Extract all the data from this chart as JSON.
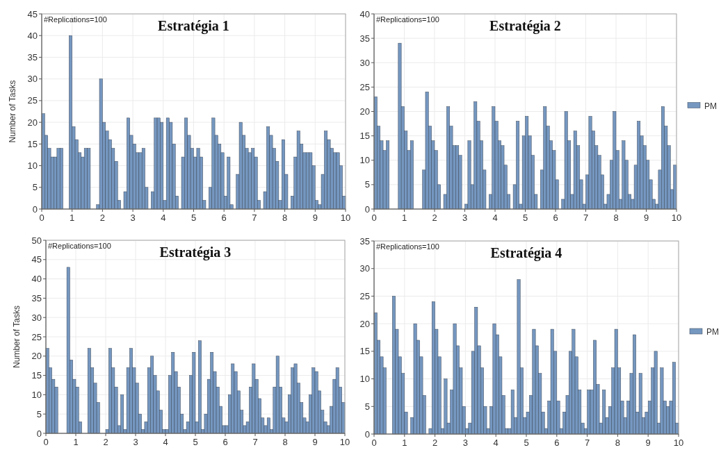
{
  "chart_data": [
    {
      "type": "histogram",
      "title": "Estratégia 1",
      "ylabel": "Number of Tasks",
      "annotations": [
        "#Replications=100"
      ],
      "xlim": [
        0,
        10
      ],
      "xticks": [
        0,
        1,
        2,
        3,
        4,
        5,
        6,
        7,
        8,
        9,
        10
      ],
      "ylim": [
        0,
        45
      ],
      "yticks": [
        0,
        5,
        10,
        15,
        20,
        25,
        30,
        35,
        40,
        45
      ],
      "grid": true,
      "legend": false,
      "bins": [
        0,
        0.1,
        0.2,
        0.3,
        0.4,
        0.5,
        0.6,
        0.7,
        0.8,
        0.9,
        1,
        1.1,
        1.2,
        1.3,
        1.4,
        1.5,
        1.6,
        1.7,
        1.8,
        1.9,
        2,
        2.1,
        2.2,
        2.3,
        2.4,
        2.5,
        2.6,
        2.7,
        2.8,
        2.9,
        3,
        3.1,
        3.2,
        3.3,
        3.4,
        3.5,
        3.6,
        3.7,
        3.8,
        3.9,
        4,
        4.1,
        4.2,
        4.3,
        4.4,
        4.5,
        4.6,
        4.7,
        4.8,
        4.9,
        5,
        5.1,
        5.2,
        5.3,
        5.4,
        5.5,
        5.6,
        5.7,
        5.8,
        5.9,
        6,
        6.1,
        6.2,
        6.3,
        6.4,
        6.5,
        6.6,
        6.7,
        6.8,
        6.9,
        7,
        7.1,
        7.2,
        7.3,
        7.4,
        7.5,
        7.6,
        7.7,
        7.8,
        7.9,
        8,
        8.1,
        8.2,
        8.3,
        8.4,
        8.5,
        8.6,
        8.7,
        8.8,
        8.9,
        9,
        9.1,
        9.2,
        9.3,
        9.4,
        9.5,
        9.6,
        9.7,
        9.8,
        9.9,
        10
      ],
      "series": [
        {
          "color": "#7597c0",
          "values": [
            22,
            17,
            14,
            12,
            12,
            14,
            14,
            0,
            0,
            40,
            19,
            16,
            13,
            12,
            14,
            14,
            0,
            0,
            1,
            30,
            20,
            18,
            16,
            14,
            11,
            2,
            0,
            4,
            21,
            17,
            15,
            13,
            13,
            14,
            5,
            0,
            4,
            21,
            21,
            20,
            2,
            21,
            20,
            15,
            3,
            0,
            12,
            21,
            17,
            14,
            12,
            14,
            12,
            2,
            0,
            5,
            21,
            17,
            15,
            13,
            3,
            12,
            1,
            0,
            8,
            20,
            17,
            14,
            13,
            14,
            12,
            2,
            0,
            4,
            19,
            17,
            14,
            11,
            2,
            16,
            8,
            0,
            3,
            12,
            18,
            15,
            13,
            13,
            13,
            10,
            2,
            1,
            8,
            18,
            16,
            14,
            13,
            13,
            10,
            3
          ]
        }
      ]
    },
    {
      "type": "histogram",
      "title": "Estratégia 2",
      "annotations": [
        "#Replications=100"
      ],
      "xlim": [
        0,
        10
      ],
      "xticks": [
        0,
        1,
        2,
        3,
        4,
        5,
        6,
        7,
        8,
        9,
        10
      ],
      "ylim": [
        0,
        40
      ],
      "yticks": [
        0,
        5,
        10,
        15,
        20,
        25,
        30,
        35,
        40
      ],
      "grid": true,
      "legend": "right",
      "bins": [
        0,
        0.1,
        0.2,
        0.3,
        0.4,
        0.5,
        0.6,
        0.7,
        0.8,
        0.9,
        1,
        1.1,
        1.2,
        1.3,
        1.4,
        1.5,
        1.6,
        1.7,
        1.8,
        1.9,
        2,
        2.1,
        2.2,
        2.3,
        2.4,
        2.5,
        2.6,
        2.7,
        2.8,
        2.9,
        3,
        3.1,
        3.2,
        3.3,
        3.4,
        3.5,
        3.6,
        3.7,
        3.8,
        3.9,
        4,
        4.1,
        4.2,
        4.3,
        4.4,
        4.5,
        4.6,
        4.7,
        4.8,
        4.9,
        5,
        5.1,
        5.2,
        5.3,
        5.4,
        5.5,
        5.6,
        5.7,
        5.8,
        5.9,
        6,
        6.1,
        6.2,
        6.3,
        6.4,
        6.5,
        6.6,
        6.7,
        6.8,
        6.9,
        7,
        7.1,
        7.2,
        7.3,
        7.4,
        7.5,
        7.6,
        7.7,
        7.8,
        7.9,
        8,
        8.1,
        8.2,
        8.3,
        8.4,
        8.5,
        8.6,
        8.7,
        8.8,
        8.9,
        9,
        9.1,
        9.2,
        9.3,
        9.4,
        9.5,
        9.6,
        9.7,
        9.8,
        9.9,
        10
      ],
      "series": [
        {
          "name": "PM",
          "color": "#7597c0",
          "values": [
            23,
            17,
            14,
            12,
            14,
            0,
            0,
            0,
            34,
            21,
            16,
            12,
            14,
            0,
            0,
            0,
            8,
            24,
            17,
            14,
            12,
            5,
            0,
            3,
            21,
            17,
            13,
            13,
            11,
            0,
            1,
            14,
            5,
            22,
            18,
            14,
            8,
            0,
            3,
            21,
            18,
            14,
            13,
            9,
            3,
            0,
            5,
            18,
            1,
            15,
            19,
            15,
            11,
            3,
            0,
            8,
            21,
            17,
            14,
            12,
            6,
            0,
            2,
            20,
            14,
            3,
            16,
            13,
            6,
            1,
            7,
            19,
            16,
            13,
            11,
            7,
            1,
            3,
            10,
            20,
            12,
            2,
            14,
            10,
            3,
            2,
            9,
            18,
            15,
            13,
            10,
            6,
            2,
            1,
            8,
            21,
            17,
            13,
            4,
            9
          ]
        }
      ]
    },
    {
      "type": "histogram",
      "title": "Estratégia 3",
      "ylabel": "Number of Tasks",
      "annotations": [
        "#Replications=100"
      ],
      "xlim": [
        0,
        10
      ],
      "xticks": [
        0,
        1,
        2,
        3,
        4,
        5,
        6,
        7,
        8,
        9,
        10
      ],
      "ylim": [
        0,
        50
      ],
      "yticks": [
        0,
        5,
        10,
        15,
        20,
        25,
        30,
        35,
        40,
        45,
        50
      ],
      "grid": true,
      "legend": false,
      "bins": [
        0,
        0.1,
        0.2,
        0.3,
        0.4,
        0.5,
        0.6,
        0.7,
        0.8,
        0.9,
        1,
        1.1,
        1.2,
        1.3,
        1.4,
        1.5,
        1.6,
        1.7,
        1.8,
        1.9,
        2,
        2.1,
        2.2,
        2.3,
        2.4,
        2.5,
        2.6,
        2.7,
        2.8,
        2.9,
        3,
        3.1,
        3.2,
        3.3,
        3.4,
        3.5,
        3.6,
        3.7,
        3.8,
        3.9,
        4,
        4.1,
        4.2,
        4.3,
        4.4,
        4.5,
        4.6,
        4.7,
        4.8,
        4.9,
        5,
        5.1,
        5.2,
        5.3,
        5.4,
        5.5,
        5.6,
        5.7,
        5.8,
        5.9,
        6,
        6.1,
        6.2,
        6.3,
        6.4,
        6.5,
        6.6,
        6.7,
        6.8,
        6.9,
        7,
        7.1,
        7.2,
        7.3,
        7.4,
        7.5,
        7.6,
        7.7,
        7.8,
        7.9,
        8,
        8.1,
        8.2,
        8.3,
        8.4,
        8.5,
        8.6,
        8.7,
        8.8,
        8.9,
        9,
        9.1,
        9.2,
        9.3,
        9.4,
        9.5,
        9.6,
        9.7,
        9.8,
        9.9,
        10
      ],
      "series": [
        {
          "color": "#7597c0",
          "values": [
            22,
            17,
            14,
            12,
            0,
            0,
            0,
            43,
            19,
            14,
            12,
            3,
            0,
            0,
            22,
            17,
            13,
            8,
            0,
            0,
            1,
            22,
            17,
            12,
            2,
            10,
            1,
            17,
            22,
            17,
            13,
            5,
            1,
            3,
            17,
            20,
            15,
            11,
            6,
            1,
            1,
            15,
            21,
            16,
            12,
            5,
            1,
            3,
            15,
            21,
            3,
            24,
            1,
            5,
            14,
            21,
            16,
            12,
            7,
            2,
            2,
            10,
            18,
            16,
            11,
            6,
            2,
            3,
            12,
            18,
            14,
            9,
            4,
            2,
            4,
            1,
            12,
            20,
            12,
            4,
            3,
            10,
            17,
            18,
            13,
            8,
            4,
            3,
            10,
            17,
            16,
            11,
            6,
            3,
            2,
            7,
            14,
            17,
            12,
            8
          ]
        }
      ]
    },
    {
      "type": "histogram",
      "title": "Estratégia 4",
      "annotations": [
        "#Replications=100"
      ],
      "xlim": [
        0,
        10
      ],
      "xticks": [
        0,
        1,
        2,
        3,
        4,
        5,
        6,
        7,
        8,
        9,
        10
      ],
      "ylim": [
        0,
        35
      ],
      "yticks": [
        0,
        5,
        10,
        15,
        20,
        25,
        30,
        35
      ],
      "grid": true,
      "legend": "right",
      "bins": [
        0,
        0.1,
        0.2,
        0.3,
        0.4,
        0.5,
        0.6,
        0.7,
        0.8,
        0.9,
        1,
        1.1,
        1.2,
        1.3,
        1.4,
        1.5,
        1.6,
        1.7,
        1.8,
        1.9,
        2,
        2.1,
        2.2,
        2.3,
        2.4,
        2.5,
        2.6,
        2.7,
        2.8,
        2.9,
        3,
        3.1,
        3.2,
        3.3,
        3.4,
        3.5,
        3.6,
        3.7,
        3.8,
        3.9,
        4,
        4.1,
        4.2,
        4.3,
        4.4,
        4.5,
        4.6,
        4.7,
        4.8,
        4.9,
        5,
        5.1,
        5.2,
        5.3,
        5.4,
        5.5,
        5.6,
        5.7,
        5.8,
        5.9,
        6,
        6.1,
        6.2,
        6.3,
        6.4,
        6.5,
        6.6,
        6.7,
        6.8,
        6.9,
        7,
        7.1,
        7.2,
        7.3,
        7.4,
        7.5,
        7.6,
        7.7,
        7.8,
        7.9,
        8,
        8.1,
        8.2,
        8.3,
        8.4,
        8.5,
        8.6,
        8.7,
        8.8,
        8.9,
        9,
        9.1,
        9.2,
        9.3,
        9.4,
        9.5,
        9.6,
        9.7,
        9.8,
        9.9,
        10
      ],
      "series": [
        {
          "name": "PM",
          "color": "#7597c0",
          "values": [
            22,
            17,
            14,
            12,
            0,
            0,
            25,
            19,
            14,
            11,
            4,
            0,
            3,
            20,
            17,
            14,
            7,
            0,
            1,
            24,
            19,
            14,
            1,
            10,
            2,
            8,
            20,
            16,
            12,
            5,
            1,
            2,
            15,
            23,
            16,
            12,
            5,
            1,
            5,
            20,
            18,
            14,
            7,
            1,
            1,
            8,
            3,
            28,
            12,
            3,
            4,
            7,
            19,
            16,
            11,
            4,
            1,
            6,
            19,
            15,
            6,
            1,
            4,
            7,
            15,
            19,
            14,
            8,
            2,
            1,
            8,
            8,
            17,
            9,
            2,
            8,
            3,
            5,
            12,
            19,
            12,
            6,
            3,
            6,
            11,
            18,
            4,
            11,
            3,
            4,
            6,
            12,
            15,
            2,
            12,
            6,
            5,
            6,
            13,
            2
          ]
        }
      ]
    }
  ]
}
